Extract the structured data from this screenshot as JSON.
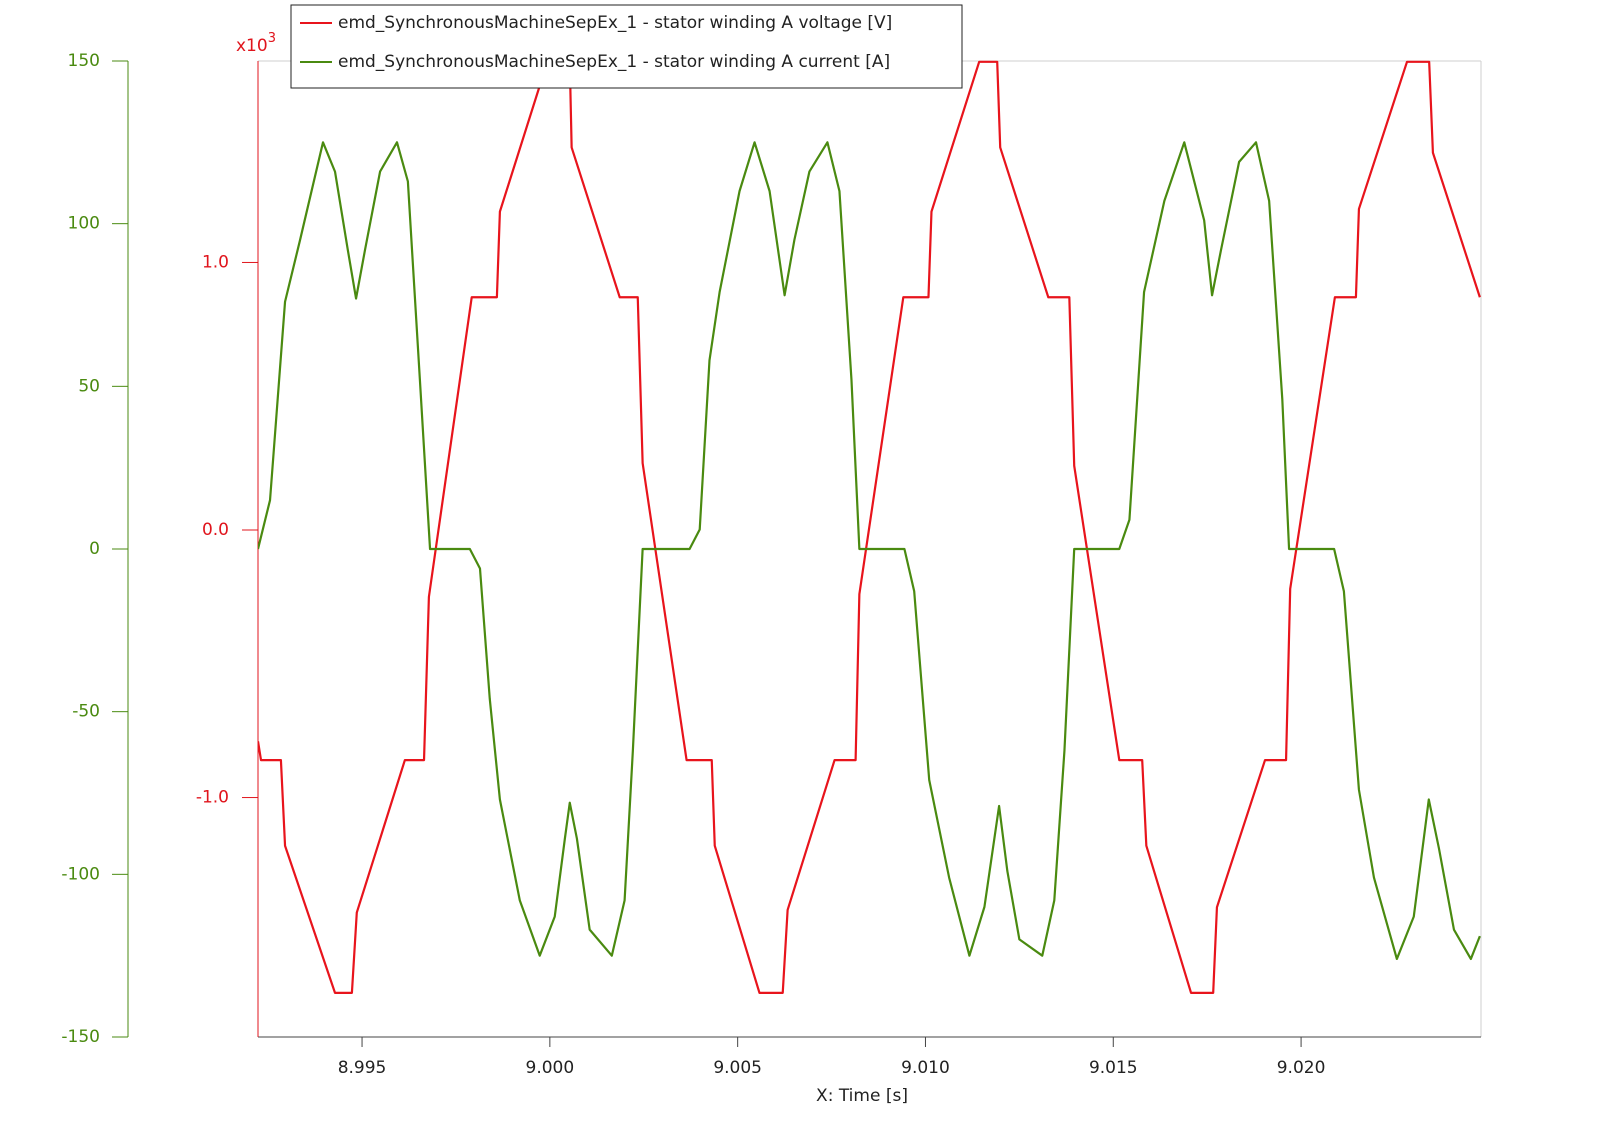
{
  "chart_data": {
    "type": "line",
    "x_label": "X: Time [s]",
    "xlim": [
      8.99223,
      9.02479
    ],
    "xticks": [
      8.995,
      {
        "value": 9.0,
        "label": "9.000"
      },
      9.005,
      {
        "value": 9.01,
        "label": "9.010"
      },
      9.015,
      {
        "value": 9.02,
        "label": "9.020"
      }
    ],
    "ylim": [
      -150,
      150
    ],
    "yticks": [
      -150,
      -100,
      -50,
      0,
      50,
      100,
      150
    ],
    "y_color": "#4a8a10",
    "y2lim": [
      -1.895,
      1.753
    ],
    "y2ticks": [
      {
        "value": -1,
        "label": "-1.0"
      },
      {
        "value": 0,
        "label": "0.0"
      },
      {
        "value": 1,
        "label": "1.0"
      }
    ],
    "y2_color": "#e0141c",
    "y2_multiplier": {
      "base": "x10",
      "exponent": "3"
    },
    "legend": "top-left",
    "series": [
      {
        "name": "emd_SynchronousMachineSepEx_1 - stator winding A voltage [V]",
        "color": "#e8141c",
        "axis": "y2",
        "x": [
          8.99223,
          8.99231,
          8.99284,
          8.99295,
          8.99428,
          8.99473,
          8.99486,
          8.99614,
          8.99665,
          8.99678,
          8.99792,
          8.99859,
          8.99867,
          8.99973,
          8.99981,
          9.00053,
          9.00058,
          9.00186,
          9.00234,
          9.00247,
          9.00364,
          9.00431,
          9.00439,
          9.00558,
          9.0062,
          9.00633,
          9.00758,
          9.00814,
          9.00824,
          9.00941,
          9.01008,
          9.01016,
          9.01143,
          9.01191,
          9.01199,
          9.01327,
          9.01383,
          9.01396,
          9.01516,
          9.01577,
          9.01588,
          9.01707,
          9.01766,
          9.01776,
          9.01904,
          9.0196,
          9.01971,
          9.0209,
          9.02146,
          9.02154,
          9.02282,
          9.02341,
          9.02351,
          9.02476
        ],
        "values": [
          -0.79,
          -0.86,
          -0.86,
          -1.18,
          -1.73,
          -1.73,
          -1.43,
          -0.86,
          -0.86,
          -0.25,
          0.87,
          0.87,
          1.19,
          1.66,
          1.75,
          1.75,
          1.43,
          0.87,
          0.87,
          0.25,
          -0.86,
          -0.86,
          -1.18,
          -1.73,
          -1.73,
          -1.42,
          -0.86,
          -0.86,
          -0.24,
          0.87,
          0.87,
          1.19,
          1.75,
          1.75,
          1.43,
          0.87,
          0.87,
          0.24,
          -0.86,
          -0.86,
          -1.18,
          -1.73,
          -1.73,
          -1.41,
          -0.86,
          -0.86,
          -0.22,
          0.87,
          0.87,
          1.2,
          1.75,
          1.75,
          1.41,
          0.87
        ]
      },
      {
        "name": "emd_SynchronousMachineSepEx_1 - stator winding A current [A]",
        "color": "#4a8a10",
        "axis": "y",
        "x": [
          8.99223,
          8.99255,
          8.99295,
          8.99335,
          8.99396,
          8.99428,
          8.99462,
          8.99484,
          8.99508,
          8.99548,
          8.99593,
          8.99622,
          8.99654,
          8.99681,
          8.99787,
          8.99814,
          8.9984,
          8.99867,
          8.9992,
          8.99973,
          9.00013,
          9.0004,
          9.00053,
          9.00072,
          9.00106,
          9.00165,
          9.00199,
          9.00221,
          9.00247,
          9.00372,
          9.00399,
          9.00425,
          9.00452,
          9.00505,
          9.00545,
          9.00585,
          9.00625,
          9.00651,
          9.00691,
          9.00739,
          9.00771,
          9.00803,
          9.00824,
          9.00944,
          9.0097,
          9.0101,
          9.01063,
          9.01117,
          9.01157,
          9.01196,
          9.01218,
          9.0125,
          9.01311,
          9.01343,
          9.0137,
          9.01396,
          9.01516,
          9.01543,
          9.01582,
          9.01636,
          9.01689,
          9.01742,
          9.01763,
          9.01787,
          9.01835,
          9.0188,
          9.01915,
          9.0195,
          9.01968,
          9.02088,
          9.02114,
          9.02154,
          9.02194,
          9.02255,
          9.023,
          9.0234,
          9.02367,
          9.02407,
          9.02452,
          9.02476
        ],
        "values": [
          0,
          15,
          76,
          95,
          125,
          116,
          92,
          77,
          92,
          116,
          125,
          113,
          52,
          0,
          0,
          -6,
          -46,
          -77,
          -108,
          -125,
          -113,
          -89,
          -78,
          -89,
          -117,
          -125,
          -108,
          -62,
          0,
          0,
          6,
          58,
          79,
          110,
          125,
          110,
          78,
          95,
          116,
          125,
          110,
          52,
          0,
          0,
          -13,
          -71,
          -101,
          -125,
          -110,
          -79,
          -99,
          -120,
          -125,
          -108,
          -62,
          0,
          0,
          9,
          79,
          107,
          125,
          101,
          78,
          92,
          119,
          125,
          107,
          46,
          0,
          0,
          -13,
          -74,
          -101,
          -126,
          -113,
          -77,
          -92,
          -117,
          -126,
          -119
        ]
      }
    ]
  }
}
